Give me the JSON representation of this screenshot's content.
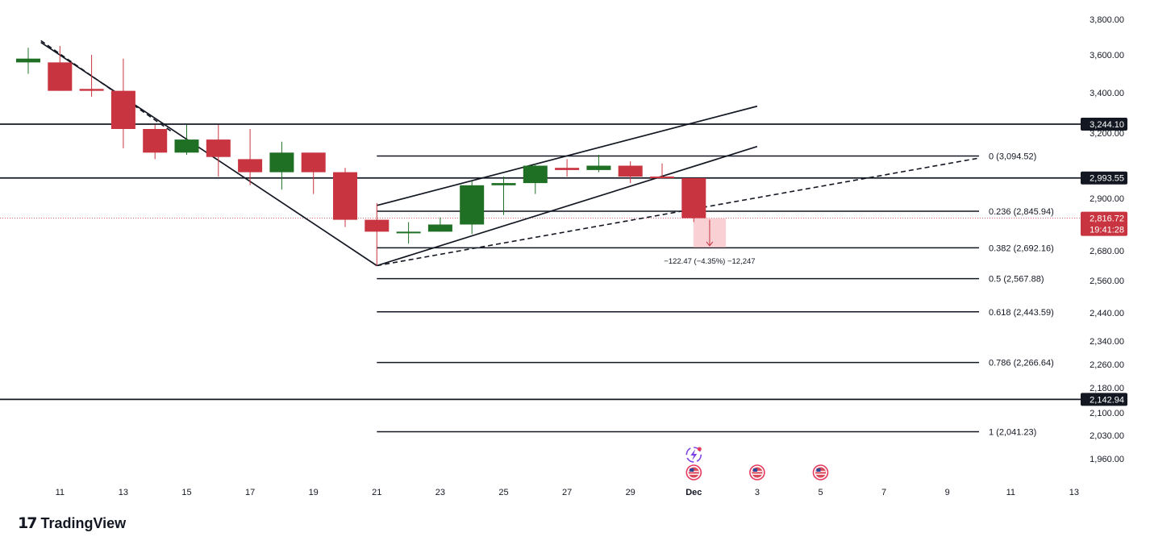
{
  "brand": {
    "name": "TradingView",
    "mark": "17"
  },
  "colors": {
    "up": "#1f6f24",
    "down": "#c8343f",
    "line": "#131722",
    "current_tag": "#c8343f",
    "measure_fill": "#f7c6cb"
  },
  "chart_data": {
    "type": "candlestick",
    "title": "",
    "xlabel": "",
    "ylabel": "",
    "x_ticks": [
      "11",
      "13",
      "15",
      "17",
      "19",
      "21",
      "23",
      "25",
      "27",
      "29",
      "Dec",
      "3",
      "5",
      "7",
      "9",
      "11",
      "13"
    ],
    "y_ticks": [
      "3,800.00",
      "3,600.00",
      "3,400.00",
      "3,200.00",
      "2,900.00",
      "2,680.00",
      "2,560.00",
      "2,440.00",
      "2,340.00",
      "2,260.00",
      "2,180.00",
      "2,100.00",
      "2,030.00",
      "1,960.00"
    ],
    "y_tick_values": [
      3800,
      3600,
      3400,
      3200,
      2900,
      2680,
      2560,
      2440,
      2340,
      2260,
      2180,
      2100,
      2030,
      1960
    ],
    "candles": [
      {
        "date": "Nov 10",
        "open": 3560,
        "high": 3640,
        "low": 3500,
        "close": 3580
      },
      {
        "date": "Nov 11",
        "open": 3560,
        "high": 3650,
        "low": 3410,
        "close": 3410
      },
      {
        "date": "Nov 12",
        "open": 3420,
        "high": 3600,
        "low": 3380,
        "close": 3410
      },
      {
        "date": "Nov 13",
        "open": 3410,
        "high": 3580,
        "low": 3130,
        "close": 3220
      },
      {
        "date": "Nov 14",
        "open": 3220,
        "high": 3240,
        "low": 3080,
        "close": 3110
      },
      {
        "date": "Nov 15",
        "open": 3110,
        "high": 3240,
        "low": 3100,
        "close": 3170
      },
      {
        "date": "Nov 16",
        "open": 3170,
        "high": 3240,
        "low": 3000,
        "close": 3090
      },
      {
        "date": "Nov 17",
        "open": 3080,
        "high": 3220,
        "low": 2960,
        "close": 3020
      },
      {
        "date": "Nov 18",
        "open": 3020,
        "high": 3160,
        "low": 2940,
        "close": 3110
      },
      {
        "date": "Nov 19",
        "open": 3110,
        "high": 3110,
        "low": 2920,
        "close": 3020
      },
      {
        "date": "Nov 20",
        "open": 3020,
        "high": 3040,
        "low": 2780,
        "close": 2810
      },
      {
        "date": "Nov 21",
        "open": 2810,
        "high": 2880,
        "low": 2620,
        "close": 2760
      },
      {
        "date": "Nov 22",
        "open": 2760,
        "high": 2800,
        "low": 2710,
        "close": 2760
      },
      {
        "date": "Nov 23",
        "open": 2760,
        "high": 2820,
        "low": 2760,
        "close": 2790
      },
      {
        "date": "Nov 24",
        "open": 2790,
        "high": 2980,
        "low": 2750,
        "close": 2960
      },
      {
        "date": "Nov 25",
        "open": 2960,
        "high": 3000,
        "low": 2830,
        "close": 2970
      },
      {
        "date": "Nov 26",
        "open": 2970,
        "high": 3060,
        "low": 2920,
        "close": 3050
      },
      {
        "date": "Nov 27",
        "open": 3040,
        "high": 3080,
        "low": 3000,
        "close": 3030
      },
      {
        "date": "Nov 28",
        "open": 3030,
        "high": 3100,
        "low": 3020,
        "close": 3050
      },
      {
        "date": "Nov 29",
        "open": 3050,
        "high": 3070,
        "low": 2970,
        "close": 3000
      },
      {
        "date": "Nov 30",
        "open": 3000,
        "high": 3060,
        "low": 2990,
        "close": 2993
      },
      {
        "date": "Dec 1",
        "open": 2993,
        "high": 2993,
        "low": 2800,
        "close": 2816.72
      }
    ],
    "horizontal_levels": [
      {
        "label": "3,244.10",
        "value": 3244.1
      },
      {
        "label": "2,993.55",
        "value": 2993.55
      },
      {
        "label": "2,142.94",
        "value": 2142.94
      }
    ],
    "current_price": {
      "label": "2,816.72",
      "countdown": "19:41:28",
      "value": 2816.72
    },
    "fibonacci": {
      "start_date": "Nov 21",
      "end_date": "Dec 10",
      "levels": [
        {
          "label": "0 (3,094.52)",
          "value": 3094.52
        },
        {
          "label": "0.236 (2,845.94)",
          "value": 2845.94
        },
        {
          "label": "0.382 (2,692.16)",
          "value": 2692.16
        },
        {
          "label": "0.5 (2,567.88)",
          "value": 2567.88
        },
        {
          "label": "0.618 (2,443.59)",
          "value": 2443.59
        },
        {
          "label": "0.786 (2,266.64)",
          "value": 2266.64
        },
        {
          "label": "1 (2,041.23)",
          "value": 2041.23
        }
      ]
    },
    "trendlines": [
      {
        "style": "solid",
        "from": {
          "date": "Nov 10.4",
          "price": 3670
        },
        "to": {
          "date": "Nov 21",
          "price": 2620
        }
      },
      {
        "style": "dashed",
        "from": {
          "date": "Nov 10.4",
          "price": 3680
        },
        "to": {
          "date": "Nov 14.5",
          "price": 3210
        }
      },
      {
        "style": "solid",
        "from": {
          "date": "Nov 21",
          "price": 2870
        },
        "to": {
          "date": "Dec 3",
          "price": 3333
        }
      },
      {
        "style": "solid",
        "from": {
          "date": "Nov 21",
          "price": 2620
        },
        "to": {
          "date": "Dec 3",
          "price": 3138
        }
      },
      {
        "style": "dashed",
        "from": {
          "date": "Nov 21",
          "price": 2620
        },
        "to": {
          "date": "Dec 10",
          "price": 3085
        }
      }
    ],
    "measure": {
      "from": {
        "date": "Dec 1",
        "price": 2816.72
      },
      "to": {
        "date": "Dec 2",
        "price": 2694
      },
      "label": "−122.47 (−4.35%) −12,247"
    },
    "event_icons": [
      {
        "date": "Dec 1",
        "type": "lightning"
      },
      {
        "date": "Dec 1",
        "type": "us-flag"
      },
      {
        "date": "Dec 3",
        "type": "us-flag"
      },
      {
        "date": "Dec 5",
        "type": "us-flag"
      }
    ]
  }
}
